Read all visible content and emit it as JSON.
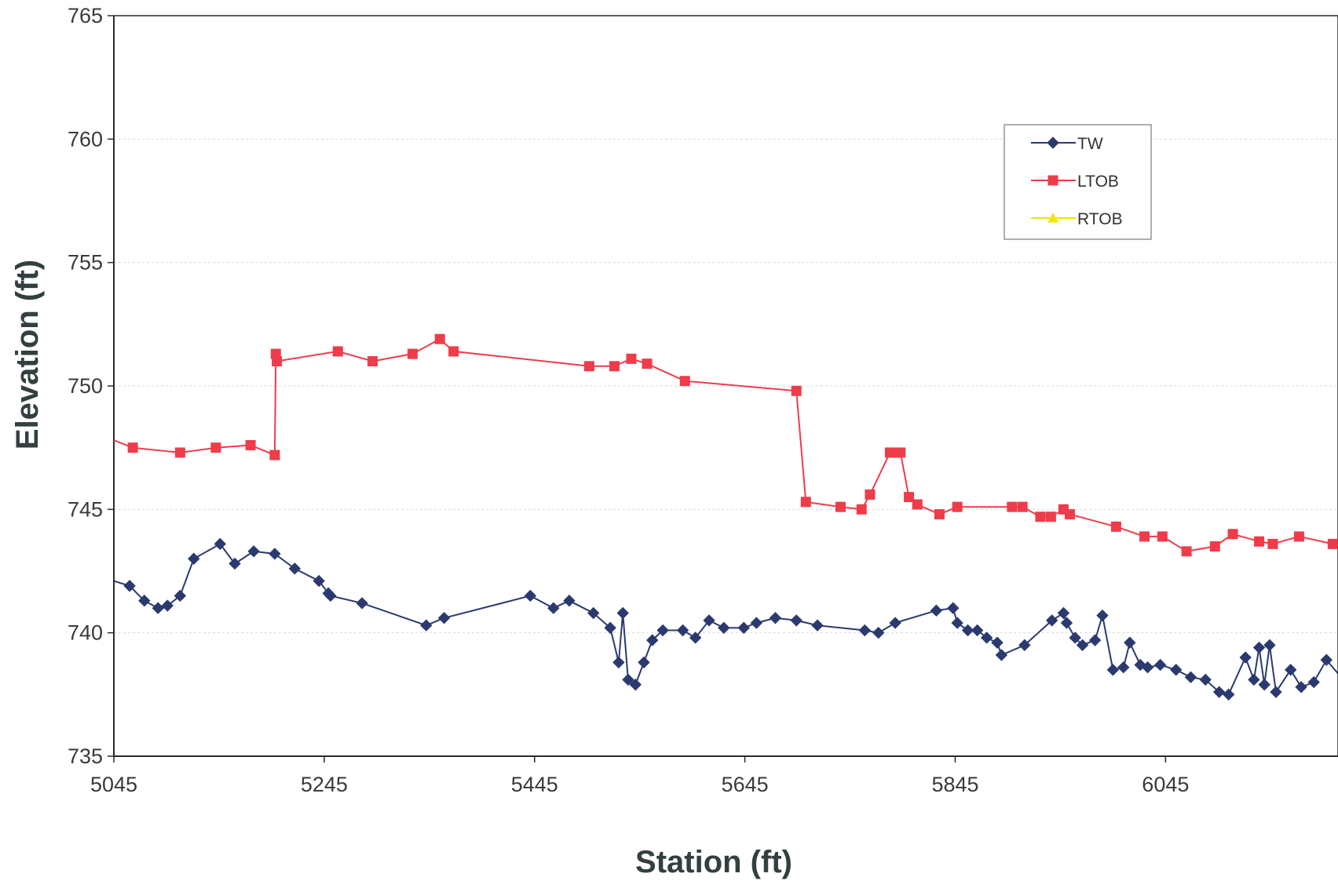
{
  "chart_data": {
    "type": "line",
    "title": "",
    "xlabel": "Station (ft)",
    "ylabel": "Elevation (ft)",
    "xlim": [
      5045,
      6209
    ],
    "ylim": [
      735,
      765
    ],
    "x_ticks": [
      5045,
      5245,
      5445,
      5645,
      5845,
      6045
    ],
    "y_ticks": [
      735,
      740,
      745,
      750,
      755,
      760,
      765
    ],
    "grid": "horizontal",
    "legend_position": "top-right",
    "colors": {
      "TW": "#2b3a6e",
      "LTOB": "#ee3c4a",
      "RTOB": "#f2e600",
      "gridline": "#d9d9d9",
      "axis": "#2a2a2a",
      "text": "#333f40"
    },
    "series": [
      {
        "name": "TW",
        "marker": "diamond",
        "points": [
          [
            5045,
            742.1
          ],
          [
            5060,
            741.9
          ],
          [
            5074,
            741.3
          ],
          [
            5087,
            741.0
          ],
          [
            5096,
            741.1
          ],
          [
            5108,
            741.5
          ],
          [
            5121,
            743.0
          ],
          [
            5146,
            743.6
          ],
          [
            5160,
            742.8
          ],
          [
            5178,
            743.3
          ],
          [
            5198,
            743.2
          ],
          [
            5217,
            742.6
          ],
          [
            5240,
            742.1
          ],
          [
            5249,
            741.6
          ],
          [
            5251,
            741.5
          ],
          [
            5281,
            741.2
          ],
          [
            5342,
            740.3
          ],
          [
            5359,
            740.6
          ],
          [
            5441,
            741.5
          ],
          [
            5463,
            741.0
          ],
          [
            5478,
            741.3
          ],
          [
            5501,
            740.8
          ],
          [
            5517,
            740.2
          ],
          [
            5525,
            738.8
          ],
          [
            5529,
            740.8
          ],
          [
            5534,
            738.1
          ],
          [
            5541,
            737.9
          ],
          [
            5549,
            738.8
          ],
          [
            5557,
            739.7
          ],
          [
            5567,
            740.1
          ],
          [
            5586,
            740.1
          ],
          [
            5598,
            739.8
          ],
          [
            5611,
            740.5
          ],
          [
            5625,
            740.2
          ],
          [
            5644,
            740.2
          ],
          [
            5656,
            740.4
          ],
          [
            5674,
            740.6
          ],
          [
            5694,
            740.5
          ],
          [
            5714,
            740.3
          ],
          [
            5759,
            740.1
          ],
          [
            5772,
            740.0
          ],
          [
            5788,
            740.4
          ],
          [
            5827,
            740.9
          ],
          [
            5843,
            741.0
          ],
          [
            5847,
            740.4
          ],
          [
            5857,
            740.1
          ],
          [
            5866,
            740.1
          ],
          [
            5875,
            739.8
          ],
          [
            5885,
            739.6
          ],
          [
            5889,
            739.1
          ],
          [
            5911,
            739.5
          ],
          [
            5937,
            740.5
          ],
          [
            5948,
            740.8
          ],
          [
            5951,
            740.4
          ],
          [
            5959,
            739.8
          ],
          [
            5966,
            739.5
          ],
          [
            5978,
            739.7
          ],
          [
            5985,
            740.7
          ],
          [
            5995,
            738.5
          ],
          [
            6005,
            738.6
          ],
          [
            6011,
            739.6
          ],
          [
            6021,
            738.7
          ],
          [
            6028,
            738.6
          ],
          [
            6040,
            738.7
          ],
          [
            6055,
            738.5
          ],
          [
            6069,
            738.2
          ],
          [
            6083,
            738.1
          ],
          [
            6096,
            737.6
          ],
          [
            6105,
            737.5
          ],
          [
            6121,
            739.0
          ],
          [
            6129,
            738.1
          ],
          [
            6134,
            739.4
          ],
          [
            6139,
            737.9
          ],
          [
            6144,
            739.5
          ],
          [
            6150,
            737.6
          ],
          [
            6164,
            738.5
          ],
          [
            6174,
            737.8
          ],
          [
            6186,
            738.0
          ],
          [
            6198,
            738.9
          ],
          [
            6214,
            738.1
          ],
          [
            6225,
            737.6
          ]
        ]
      },
      {
        "name": "LTOB",
        "marker": "square",
        "points": [
          [
            5045,
            747.8
          ],
          [
            5063,
            747.5
          ],
          [
            5108,
            747.3
          ],
          [
            5142,
            747.5
          ],
          [
            5175,
            747.6
          ],
          [
            5198,
            747.2
          ],
          [
            5199,
            751.3
          ],
          [
            5200,
            751.0
          ],
          [
            5258,
            751.4
          ],
          [
            5291,
            751.0
          ],
          [
            5329,
            751.3
          ],
          [
            5355,
            751.9
          ],
          [
            5368,
            751.4
          ],
          [
            5497,
            750.8
          ],
          [
            5521,
            750.8
          ],
          [
            5537,
            751.1
          ],
          [
            5552,
            750.9
          ],
          [
            5588,
            750.2
          ],
          [
            5694,
            749.8
          ],
          [
            5703,
            745.3
          ],
          [
            5736,
            745.1
          ],
          [
            5756,
            745.0
          ],
          [
            5764,
            745.6
          ],
          [
            5783,
            747.3
          ],
          [
            5788,
            747.3
          ],
          [
            5793,
            747.3
          ],
          [
            5801,
            745.5
          ],
          [
            5809,
            745.2
          ],
          [
            5830,
            744.8
          ],
          [
            5847,
            745.1
          ],
          [
            5899,
            745.1
          ],
          [
            5909,
            745.1
          ],
          [
            5926,
            744.7
          ],
          [
            5936,
            744.7
          ],
          [
            5948,
            745.0
          ],
          [
            5954,
            744.8
          ],
          [
            5998,
            744.3
          ],
          [
            6025,
            743.9
          ],
          [
            6042,
            743.9
          ],
          [
            6065,
            743.3
          ],
          [
            6092,
            743.5
          ],
          [
            6109,
            744.0
          ],
          [
            6134,
            743.7
          ],
          [
            6147,
            743.6
          ],
          [
            6172,
            743.9
          ],
          [
            6204,
            743.6
          ],
          [
            6217,
            743.5
          ],
          [
            6226,
            743.3
          ]
        ]
      },
      {
        "name": "RTOB",
        "marker": "triangle",
        "points": []
      }
    ]
  }
}
